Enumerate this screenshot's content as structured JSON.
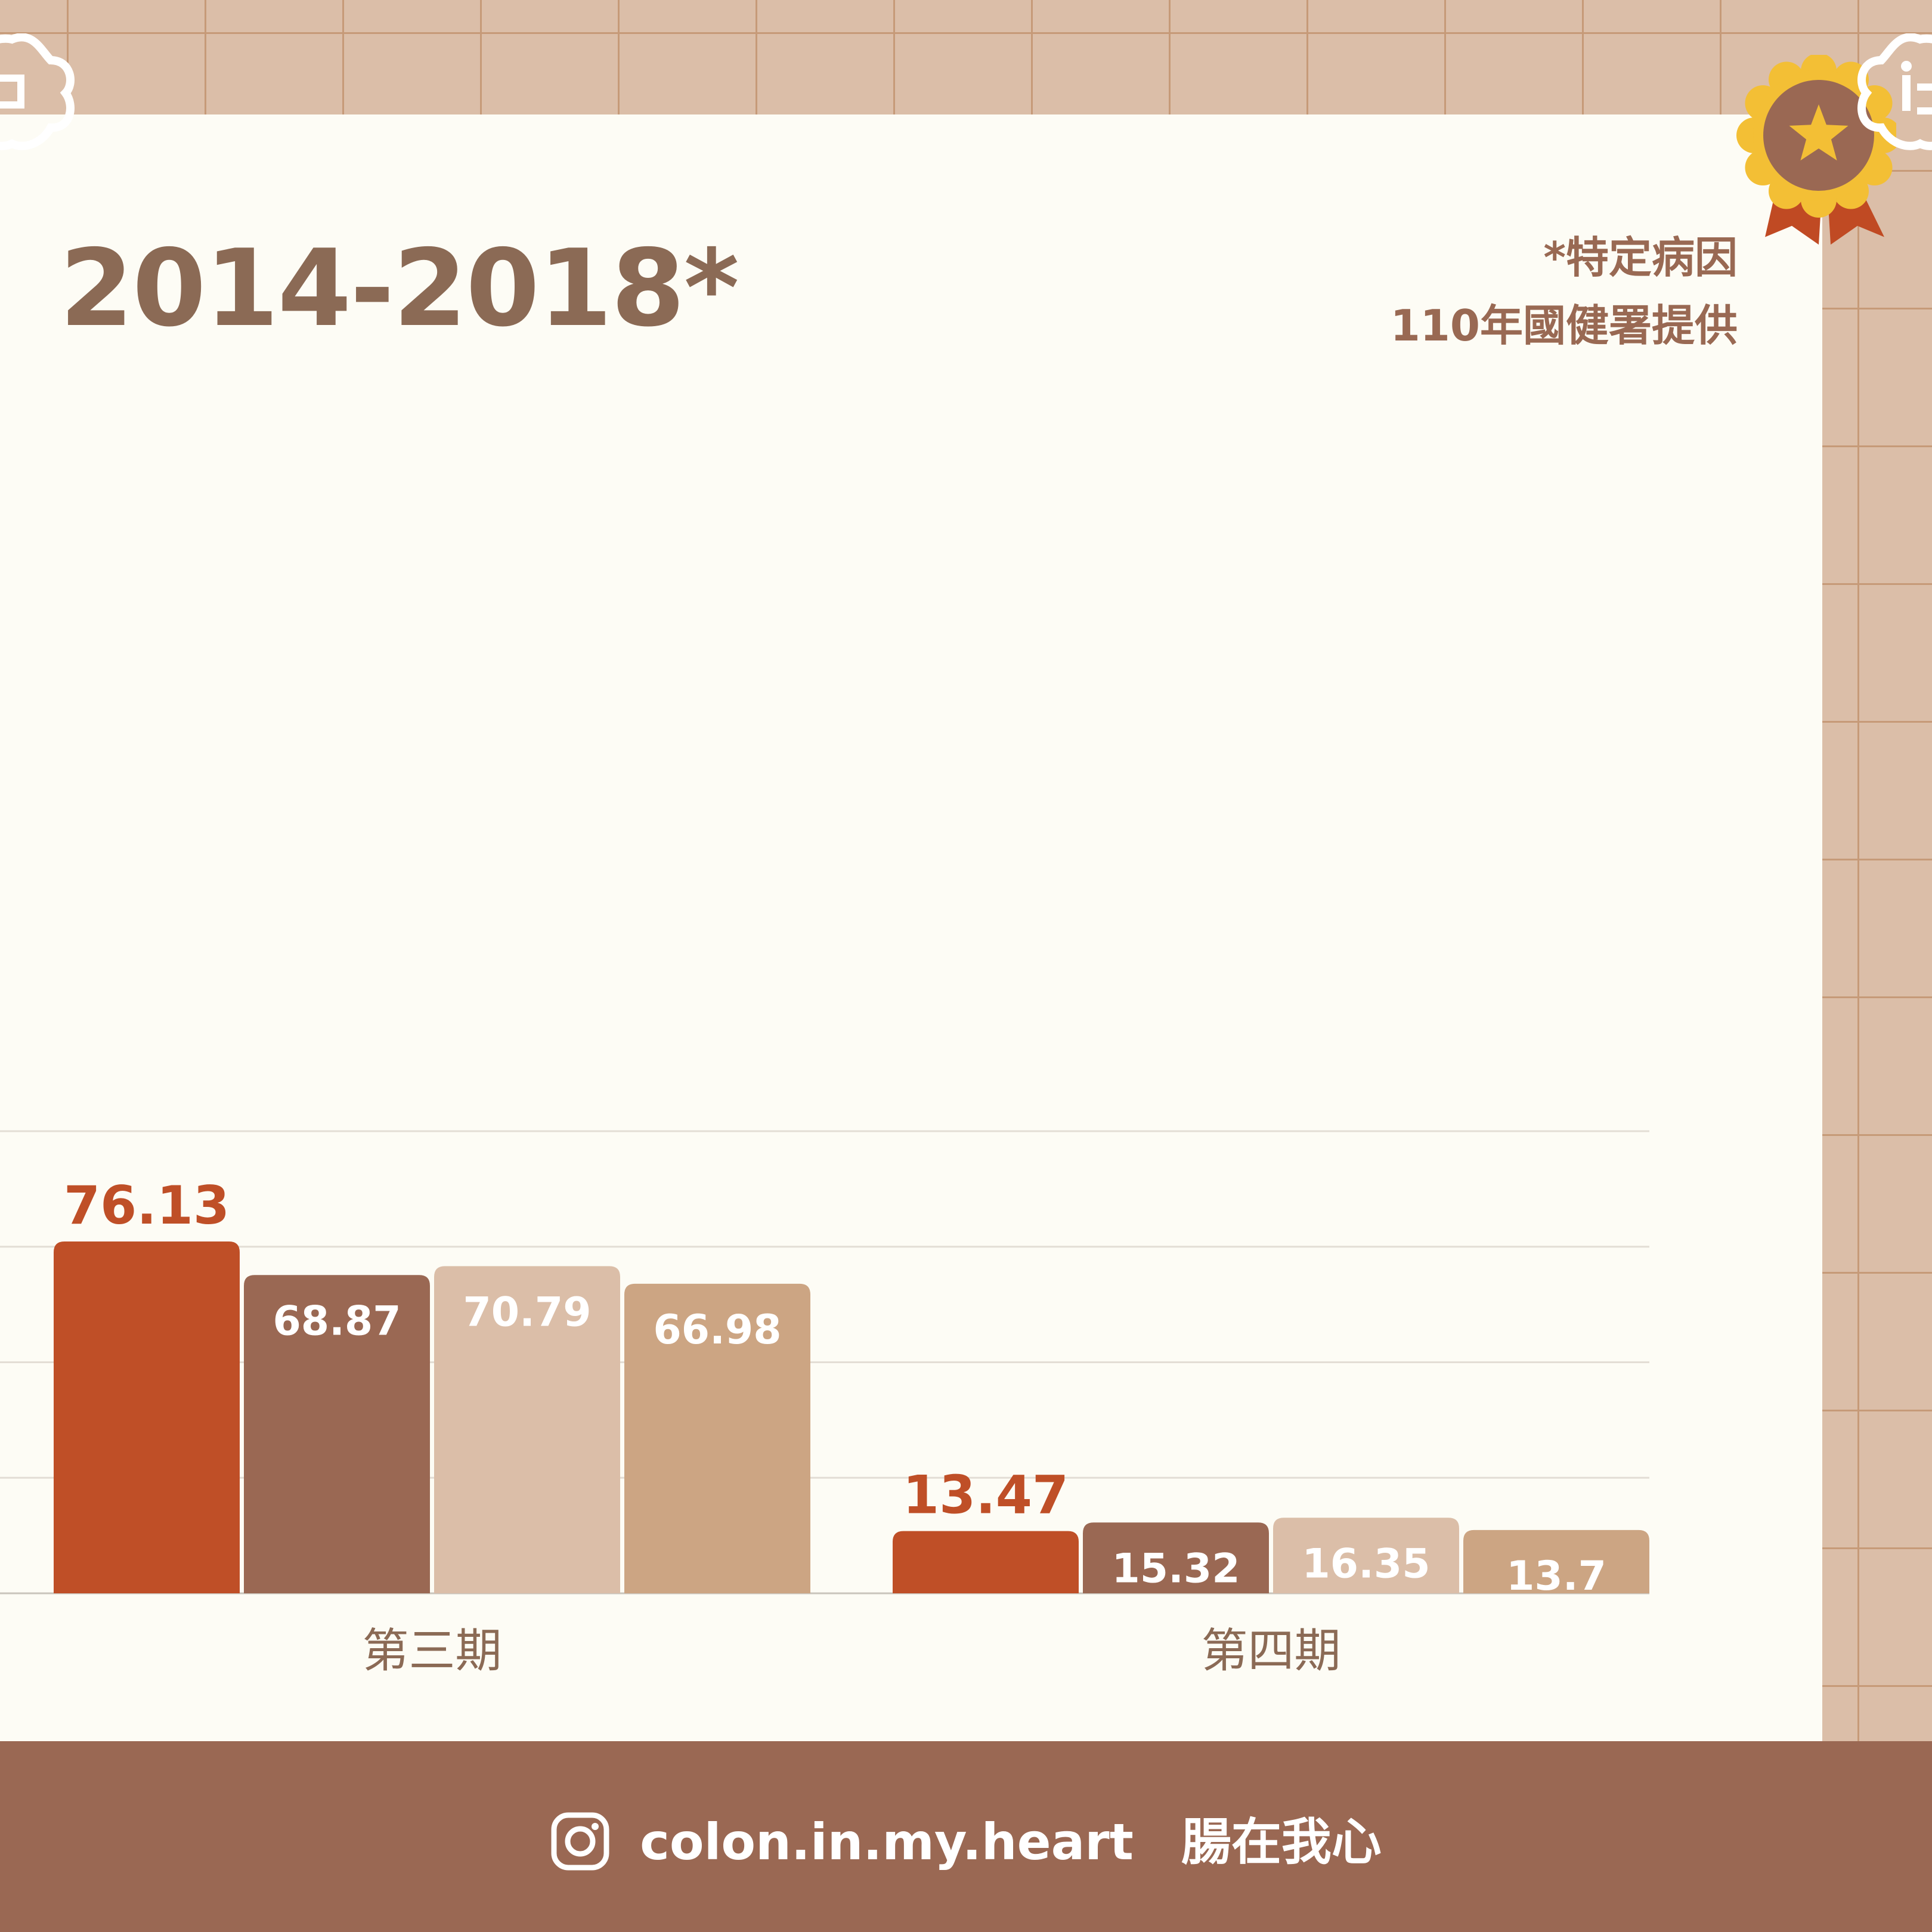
{
  "title": "2014-2018*",
  "notes": {
    "line1": "*特定病因",
    "line2": "110年國健署提供"
  },
  "footer": {
    "handle": "colon.in.my.heart",
    "brand": "腸在我心",
    "icon": "instagram-icon"
  },
  "colors": {
    "accent_text": "#bf4f27",
    "value_label": "#ffffff",
    "title": "#8b6a55",
    "background_grid": "#dbbea8",
    "card": "#fdfcf5",
    "footer": "#9a6853",
    "badge_gold": "#f3bf35",
    "badge_center": "#9a6853",
    "ribbon": "#c04a23"
  },
  "chart_data": {
    "type": "bar",
    "categories": [
      "第三期",
      "第四期"
    ],
    "series": [
      {
        "values": [
          76.13,
          13.47
        ],
        "color": "#bf4f27"
      },
      {
        "values": [
          68.87,
          15.32
        ],
        "color": "#9a6853"
      },
      {
        "values": [
          70.79,
          16.35
        ],
        "color": "#dbbea8"
      },
      {
        "values": [
          66.98,
          13.7
        ],
        "color": "#cca583"
      }
    ],
    "ylim": [
      0,
      100
    ],
    "grid": true,
    "value_labels": true
  }
}
